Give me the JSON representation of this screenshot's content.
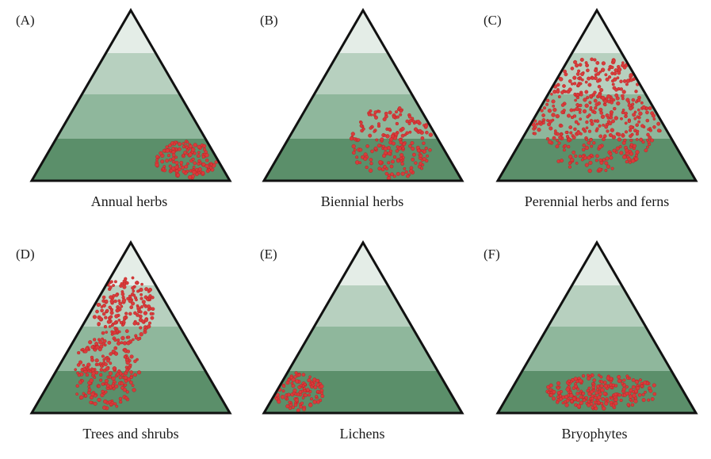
{
  "colors": {
    "band_top": "#e4ede7",
    "band_2": "#b7d0bf",
    "band_3": "#8fb79c",
    "band_4": "#75a684",
    "band_bottom": "#5b8f6a",
    "outline": "#111111",
    "dot": "#d93b3b",
    "dot_edge": "#b51f1f"
  },
  "panels": [
    {
      "letter": "(A)",
      "caption": "Annual herbs"
    },
    {
      "letter": "(B)",
      "caption": "Biennial herbs"
    },
    {
      "letter": "(C)",
      "caption": "Perennial herbs and ferns"
    },
    {
      "letter": "(D)",
      "caption": "Trees and shrubs"
    },
    {
      "letter": "(E)",
      "caption": "Lichens"
    },
    {
      "letter": "(F)",
      "caption": "Bryophytes"
    }
  ]
}
